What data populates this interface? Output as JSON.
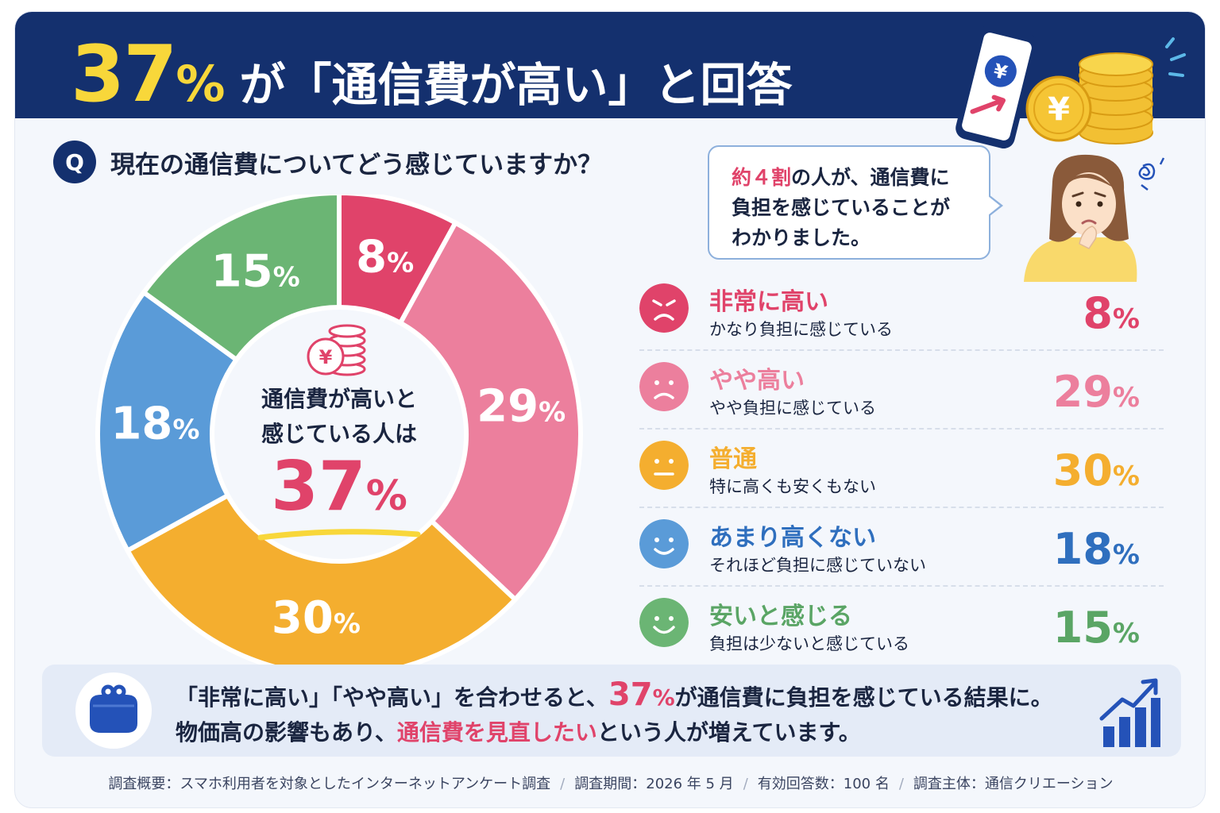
{
  "header": {
    "title_number": "37",
    "title_percent": "%",
    "title_rest": "が「通信費が高い」と回答"
  },
  "question": {
    "mark": "Q",
    "text": "現在の通信費についてどう感じていますか？"
  },
  "center": {
    "line1": "通信費が高いと",
    "line2": "感じている人は",
    "value": "37",
    "unit": "%"
  },
  "bubble": {
    "highlight": "約４割",
    "line1_rest": "の人が、通信費に",
    "line2": "負担を感じていることが",
    "line3": "わかりました。"
  },
  "chart_data": {
    "type": "pie",
    "unit": "%",
    "categories": [
      "非常に高い",
      "やや高い",
      "普通",
      "あまり高くない",
      "安いと感じる"
    ],
    "descriptions": [
      "かなり負担に感じている",
      "やや負担に感じている",
      "特に高くも安くもない",
      "それほど負担に感じていない",
      "負担は少ないと感じている"
    ],
    "values": [
      8,
      29,
      30,
      18,
      15
    ],
    "colors": [
      "#e0436a",
      "#ec7f9d",
      "#f4ae2f",
      "#5a9bd8",
      "#6bb574"
    ]
  },
  "summary": {
    "part1": "「非常に高い」「やや高い」を合わせると、",
    "value": "37",
    "unit": "%",
    "part2": "が通信費に負担を感じている結果に。",
    "line2_a": "物価高の影響もあり、",
    "line2_hl": "通信費を見直したい",
    "line2_b": "という人が増えています。"
  },
  "footer": {
    "items": [
      "調査概要：スマホ利用者を対象としたインターネットアンケート調査",
      "調査期間：2026 年 5 月",
      "有効回答数：100 名",
      "調査主体：通信クリエーション"
    ],
    "separator": "/"
  }
}
